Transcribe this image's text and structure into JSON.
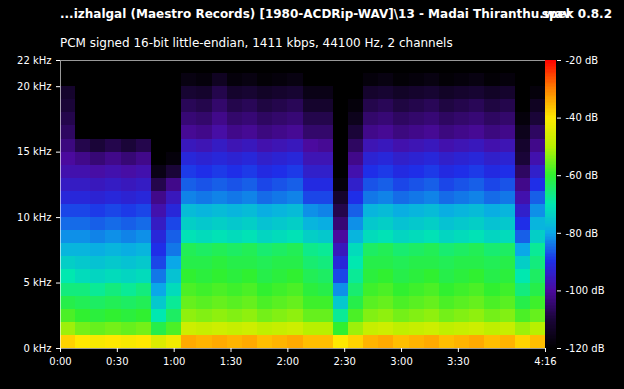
{
  "chart_data": {
    "type": "heatmap",
    "title": "...izhalgal (Maestro Records) [1980-ACDRip-WAV]\\13 - Madai Thiranthu.wav",
    "app": "spek 0.8.2",
    "subtitle": "PCM signed 16-bit little-endian, 1411 kbps, 44100 Hz, 2 channels",
    "xlim": [
      0,
      256
    ],
    "xticks": [
      {
        "value": 0,
        "label": "0:00"
      },
      {
        "value": 30,
        "label": "0:30"
      },
      {
        "value": 60,
        "label": "1:00"
      },
      {
        "value": 90,
        "label": "1:30"
      },
      {
        "value": 120,
        "label": "2:00"
      },
      {
        "value": 150,
        "label": "2:30"
      },
      {
        "value": 180,
        "label": "3:00"
      },
      {
        "value": 210,
        "label": "3:30"
      },
      {
        "value": 256,
        "label": "4:16"
      }
    ],
    "ylim": [
      0,
      22
    ],
    "yticks": [
      {
        "value": 0,
        "label": "0 kHz"
      },
      {
        "value": 5,
        "label": "5 kHz"
      },
      {
        "value": 10,
        "label": "10 kHz"
      },
      {
        "value": 15,
        "label": "15 kHz"
      },
      {
        "value": 20,
        "label": "20 kHz"
      },
      {
        "value": 22,
        "label": "22 kHz"
      }
    ],
    "colorbar_range": [
      -120,
      -20
    ],
    "colorbar_ticks": [
      {
        "value": -20,
        "label": "-20 dB"
      },
      {
        "value": -40,
        "label": "-40 dB"
      },
      {
        "value": -60,
        "label": "-60 dB"
      },
      {
        "value": -80,
        "label": "-80 dB"
      },
      {
        "value": -100,
        "label": "-100 dB"
      },
      {
        "value": -120,
        "label": "-120 dB"
      }
    ],
    "cells": {
      "time_edges": [
        0,
        8,
        16,
        24,
        32,
        40,
        48,
        56,
        64,
        72,
        80,
        88,
        96,
        104,
        112,
        120,
        128,
        136,
        144,
        152,
        160,
        168,
        176,
        184,
        192,
        200,
        208,
        216,
        224,
        232,
        240,
        248,
        256
      ],
      "freq_edges": [
        0,
        1,
        2,
        3,
        4,
        5,
        6,
        7,
        8,
        9,
        10,
        11,
        12,
        13,
        14,
        15,
        16,
        17,
        18,
        19,
        20,
        21,
        22
      ],
      "db": [
        [
          -38,
          -52,
          -58,
          -62,
          -66,
          -70,
          -74,
          -78,
          -82,
          -85,
          -88,
          -92,
          -95,
          -98,
          -100,
          -103,
          -106,
          -108,
          -110,
          -112,
          -120,
          -120
        ],
        [
          -40,
          -55,
          -60,
          -63,
          -66,
          -72,
          -75,
          -78,
          -82,
          -85,
          -88,
          -92,
          -95,
          -98,
          -102,
          -108,
          -120,
          -120,
          -120,
          -120,
          -120,
          -120
        ],
        [
          -41,
          -56,
          -61,
          -64,
          -68,
          -73,
          -76,
          -79,
          -83,
          -86,
          -89,
          -93,
          -96,
          -99,
          -104,
          -110,
          -120,
          -120,
          -120,
          -120,
          -120,
          -120
        ],
        [
          -40,
          -55,
          -60,
          -63,
          -66,
          -72,
          -75,
          -78,
          -82,
          -85,
          -88,
          -92,
          -95,
          -98,
          -102,
          -108,
          -120,
          -120,
          -120,
          -120,
          -120,
          -120
        ],
        [
          -41,
          -56,
          -61,
          -64,
          -68,
          -73,
          -76,
          -79,
          -83,
          -86,
          -89,
          -93,
          -96,
          -99,
          -104,
          -110,
          -120,
          -120,
          -120,
          -120,
          -120,
          -120
        ],
        [
          -40,
          -55,
          -60,
          -63,
          -66,
          -72,
          -75,
          -78,
          -82,
          -85,
          -88,
          -92,
          -95,
          -98,
          -102,
          -108,
          -120,
          -120,
          -120,
          -120,
          -120,
          -120
        ],
        [
          -45,
          -62,
          -70,
          -75,
          -80,
          -84,
          -88,
          -90,
          -92,
          -95,
          -98,
          -102,
          -108,
          -116,
          -120,
          -120,
          -120,
          -120,
          -120,
          -120,
          -120,
          -120
        ],
        [
          -42,
          -58,
          -64,
          -68,
          -72,
          -76,
          -80,
          -84,
          -86,
          -88,
          -92,
          -96,
          -102,
          -110,
          -118,
          -120,
          -120,
          -120,
          -120,
          -120,
          -120,
          -120
        ],
        [
          -34,
          -47,
          -53,
          -56,
          -58,
          -60,
          -62,
          -63,
          -71,
          -74,
          -77,
          -83,
          -86,
          -89,
          -92,
          -96,
          -101,
          -104,
          -107,
          -111,
          -117,
          -120
        ],
        [
          -35,
          -48,
          -54,
          -57,
          -59,
          -61,
          -62,
          -64,
          -72,
          -75,
          -78,
          -84,
          -87,
          -90,
          -93,
          -97,
          -102,
          -105,
          -108,
          -112,
          -118,
          -120
        ],
        [
          -34,
          -47,
          -53,
          -56,
          -58,
          -60,
          -61,
          -63,
          -71,
          -74,
          -77,
          -83,
          -86,
          -89,
          -92,
          -95,
          -99,
          -102,
          -105,
          -108,
          -114,
          -120
        ],
        [
          -35,
          -48,
          -54,
          -57,
          -59,
          -61,
          -62,
          -64,
          -72,
          -75,
          -78,
          -84,
          -87,
          -90,
          -93,
          -97,
          -102,
          -105,
          -108,
          -112,
          -118,
          -120
        ],
        [
          -34,
          -47,
          -53,
          -56,
          -58,
          -60,
          -62,
          -63,
          -71,
          -74,
          -77,
          -83,
          -86,
          -89,
          -92,
          -96,
          -101,
          -104,
          -107,
          -111,
          -117,
          -120
        ],
        [
          -36,
          -49,
          -55,
          -58,
          -60,
          -62,
          -63,
          -65,
          -73,
          -76,
          -79,
          -85,
          -88,
          -91,
          -94,
          -98,
          -103,
          -106,
          -109,
          -113,
          -119,
          -120
        ],
        [
          -35,
          -48,
          -54,
          -57,
          -59,
          -61,
          -62,
          -64,
          -72,
          -75,
          -78,
          -84,
          -87,
          -90,
          -93,
          -97,
          -102,
          -105,
          -108,
          -112,
          -118,
          -120
        ],
        [
          -34,
          -47,
          -53,
          -56,
          -58,
          -60,
          -62,
          -63,
          -71,
          -74,
          -77,
          -83,
          -86,
          -89,
          -92,
          -96,
          -101,
          -104,
          -107,
          -111,
          -117,
          -120
        ],
        [
          -36,
          -50,
          -56,
          -59,
          -61,
          -63,
          -65,
          -67,
          -74,
          -78,
          -82,
          -88,
          -91,
          -94,
          -97,
          -100,
          -105,
          -108,
          -112,
          -116,
          -120,
          -120
        ],
        [
          -36,
          -50,
          -56,
          -59,
          -62,
          -64,
          -66,
          -68,
          -75,
          -79,
          -83,
          -88,
          -91,
          -94,
          -97,
          -101,
          -105,
          -108,
          -112,
          -116,
          -120,
          -120
        ],
        [
          -40,
          -60,
          -68,
          -75,
          -82,
          -88,
          -92,
          -96,
          -100,
          -104,
          -108,
          -112,
          -118,
          -120,
          -120,
          -120,
          -120,
          -120,
          -120,
          -120,
          -120,
          -120
        ],
        [
          -38,
          -52,
          -58,
          -62,
          -65,
          -68,
          -70,
          -72,
          -78,
          -82,
          -86,
          -90,
          -94,
          -98,
          -102,
          -106,
          -110,
          -115,
          -118,
          -120,
          -120,
          -120
        ],
        [
          -35,
          -48,
          -54,
          -57,
          -59,
          -61,
          -62,
          -64,
          -72,
          -75,
          -78,
          -84,
          -87,
          -90,
          -93,
          -97,
          -102,
          -105,
          -108,
          -112,
          -118,
          -120
        ],
        [
          -34,
          -47,
          -53,
          -56,
          -58,
          -60,
          -62,
          -63,
          -71,
          -74,
          -77,
          -83,
          -86,
          -89,
          -92,
          -96,
          -101,
          -104,
          -107,
          -111,
          -117,
          -120
        ],
        [
          -36,
          -49,
          -55,
          -58,
          -60,
          -62,
          -63,
          -65,
          -73,
          -76,
          -79,
          -85,
          -88,
          -91,
          -94,
          -98,
          -103,
          -106,
          -109,
          -113,
          -119,
          -120
        ],
        [
          -35,
          -48,
          -54,
          -57,
          -59,
          -61,
          -62,
          -64,
          -72,
          -75,
          -78,
          -84,
          -87,
          -90,
          -93,
          -97,
          -102,
          -105,
          -108,
          -112,
          -118,
          -120
        ],
        [
          -34,
          -47,
          -53,
          -56,
          -58,
          -60,
          -62,
          -63,
          -71,
          -74,
          -77,
          -83,
          -86,
          -89,
          -92,
          -96,
          -101,
          -104,
          -107,
          -111,
          -117,
          -120
        ],
        [
          -36,
          -49,
          -55,
          -58,
          -60,
          -62,
          -63,
          -65,
          -73,
          -76,
          -79,
          -85,
          -88,
          -91,
          -94,
          -98,
          -103,
          -106,
          -109,
          -113,
          -119,
          -120
        ],
        [
          -35,
          -48,
          -54,
          -57,
          -59,
          -61,
          -62,
          -64,
          -72,
          -75,
          -78,
          -84,
          -87,
          -90,
          -93,
          -97,
          -102,
          -105,
          -108,
          -112,
          -118,
          -120
        ],
        [
          -34,
          -47,
          -53,
          -56,
          -58,
          -60,
          -62,
          -63,
          -71,
          -74,
          -77,
          -83,
          -86,
          -89,
          -92,
          -96,
          -101,
          -104,
          -107,
          -111,
          -117,
          -120
        ],
        [
          -36,
          -49,
          -55,
          -58,
          -60,
          -62,
          -63,
          -65,
          -73,
          -76,
          -79,
          -85,
          -88,
          -91,
          -94,
          -98,
          -103,
          -106,
          -109,
          -113,
          -119,
          -120
        ],
        [
          -35,
          -48,
          -54,
          -57,
          -59,
          -61,
          -62,
          -64,
          -72,
          -75,
          -78,
          -84,
          -87,
          -90,
          -93,
          -97,
          -102,
          -105,
          -108,
          -112,
          -118,
          -120
        ],
        [
          -38,
          -52,
          -58,
          -62,
          -66,
          -70,
          -74,
          -80,
          -86,
          -90,
          -94,
          -98,
          -102,
          -106,
          -110,
          -112,
          -115,
          -118,
          -120,
          -120,
          -120,
          -120
        ],
        [
          -36,
          -50,
          -56,
          -59,
          -62,
          -64,
          -66,
          -68,
          -74,
          -78,
          -82,
          -86,
          -90,
          -94,
          -98,
          -102,
          -106,
          -110,
          -114,
          -118,
          -120,
          -120
        ]
      ]
    }
  }
}
